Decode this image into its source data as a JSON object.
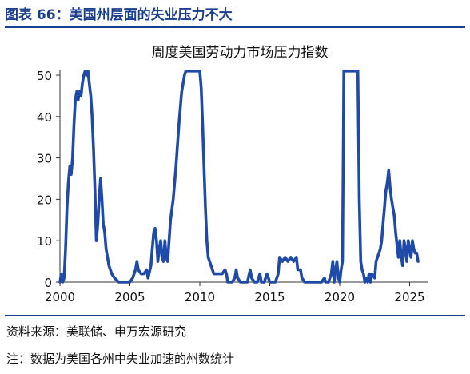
{
  "figure": {
    "title": "图表 66：美国州层面的失业压力不大",
    "source": "资料来源：美联储、申万宏源研究",
    "note": "注：数据为美国各州中失业加速的州数统计"
  },
  "colors": {
    "accent": "#1a3f8f",
    "series": "#1f4aa8",
    "text": "#111111"
  },
  "chart_data": {
    "type": "line",
    "title": "周度美国劳动力市场压力指数",
    "xlabel": "",
    "ylabel": "",
    "xlim": [
      2000,
      2026
    ],
    "ylim": [
      0,
      50
    ],
    "x_ticks": [
      2000,
      2005,
      2010,
      2015,
      2020,
      2025
    ],
    "y_ticks": [
      0,
      10,
      20,
      30,
      40,
      50
    ],
    "grid": false,
    "legend": "none",
    "series": [
      {
        "name": "",
        "points": [
          [
            2000.0,
            0
          ],
          [
            2000.1,
            2
          ],
          [
            2000.2,
            0
          ],
          [
            2000.3,
            1
          ],
          [
            2000.4,
            8
          ],
          [
            2000.5,
            18
          ],
          [
            2000.6,
            24
          ],
          [
            2000.7,
            28
          ],
          [
            2000.8,
            26
          ],
          [
            2000.9,
            30
          ],
          [
            2001.0,
            38
          ],
          [
            2001.1,
            44
          ],
          [
            2001.2,
            46
          ],
          [
            2001.3,
            44
          ],
          [
            2001.4,
            46
          ],
          [
            2001.5,
            45
          ],
          [
            2001.6,
            48
          ],
          [
            2001.7,
            50
          ],
          [
            2001.8,
            51
          ],
          [
            2001.9,
            50
          ],
          [
            2002.0,
            51
          ],
          [
            2002.1,
            48
          ],
          [
            2002.2,
            45
          ],
          [
            2002.3,
            40
          ],
          [
            2002.4,
            32
          ],
          [
            2002.5,
            22
          ],
          [
            2002.6,
            10
          ],
          [
            2002.7,
            14
          ],
          [
            2002.8,
            20
          ],
          [
            2002.9,
            25
          ],
          [
            2003.0,
            20
          ],
          [
            2003.1,
            14
          ],
          [
            2003.2,
            12
          ],
          [
            2003.3,
            8
          ],
          [
            2003.5,
            4
          ],
          [
            2003.7,
            2
          ],
          [
            2003.9,
            1
          ],
          [
            2004.2,
            0
          ],
          [
            2004.5,
            0
          ],
          [
            2004.8,
            0
          ],
          [
            2005.0,
            0
          ],
          [
            2005.2,
            1
          ],
          [
            2005.4,
            3
          ],
          [
            2005.5,
            5
          ],
          [
            2005.6,
            3
          ],
          [
            2005.8,
            2
          ],
          [
            2006.0,
            2
          ],
          [
            2006.2,
            3
          ],
          [
            2006.3,
            1
          ],
          [
            2006.5,
            4
          ],
          [
            2006.6,
            8
          ],
          [
            2006.7,
            12
          ],
          [
            2006.8,
            13
          ],
          [
            2006.9,
            10
          ],
          [
            2007.0,
            5
          ],
          [
            2007.1,
            8
          ],
          [
            2007.2,
            10
          ],
          [
            2007.3,
            6
          ],
          [
            2007.4,
            5
          ],
          [
            2007.5,
            10
          ],
          [
            2007.6,
            6
          ],
          [
            2007.7,
            5
          ],
          [
            2007.8,
            10
          ],
          [
            2007.9,
            15
          ],
          [
            2008.1,
            20
          ],
          [
            2008.3,
            28
          ],
          [
            2008.5,
            38
          ],
          [
            2008.7,
            46
          ],
          [
            2008.9,
            50
          ],
          [
            2009.0,
            51
          ],
          [
            2009.2,
            51
          ],
          [
            2009.4,
            51
          ],
          [
            2009.6,
            51
          ],
          [
            2009.8,
            51
          ],
          [
            2010.0,
            51
          ],
          [
            2010.1,
            47
          ],
          [
            2010.2,
            38
          ],
          [
            2010.3,
            28
          ],
          [
            2010.4,
            18
          ],
          [
            2010.5,
            10
          ],
          [
            2010.6,
            6
          ],
          [
            2010.8,
            4
          ],
          [
            2011.0,
            2
          ],
          [
            2011.3,
            2
          ],
          [
            2011.6,
            2
          ],
          [
            2011.8,
            3
          ],
          [
            2011.9,
            2
          ],
          [
            2012.0,
            0
          ],
          [
            2012.3,
            0
          ],
          [
            2012.5,
            1
          ],
          [
            2012.6,
            3
          ],
          [
            2012.7,
            1
          ],
          [
            2012.9,
            0
          ],
          [
            2013.2,
            0
          ],
          [
            2013.4,
            0
          ],
          [
            2013.6,
            3
          ],
          [
            2013.7,
            1
          ],
          [
            2013.9,
            0
          ],
          [
            2014.1,
            0
          ],
          [
            2014.3,
            2
          ],
          [
            2014.4,
            0
          ],
          [
            2014.6,
            0
          ],
          [
            2014.8,
            2
          ],
          [
            2015.0,
            0
          ],
          [
            2015.2,
            0
          ],
          [
            2015.4,
            0
          ],
          [
            2015.6,
            2
          ],
          [
            2015.7,
            6
          ],
          [
            2015.9,
            5
          ],
          [
            2016.1,
            6
          ],
          [
            2016.3,
            5
          ],
          [
            2016.5,
            6
          ],
          [
            2016.7,
            5
          ],
          [
            2016.9,
            6
          ],
          [
            2017.0,
            3
          ],
          [
            2017.2,
            3
          ],
          [
            2017.3,
            1
          ],
          [
            2017.5,
            0
          ],
          [
            2017.8,
            0
          ],
          [
            2018.1,
            0
          ],
          [
            2018.4,
            0
          ],
          [
            2018.7,
            0
          ],
          [
            2018.9,
            1
          ],
          [
            2019.0,
            0
          ],
          [
            2019.2,
            0
          ],
          [
            2019.4,
            2
          ],
          [
            2019.5,
            5
          ],
          [
            2019.6,
            0
          ],
          [
            2019.7,
            3
          ],
          [
            2019.8,
            5
          ],
          [
            2019.9,
            1
          ],
          [
            2020.0,
            0
          ],
          [
            2020.1,
            3
          ],
          [
            2020.2,
            5
          ],
          [
            2020.3,
            51
          ],
          [
            2020.5,
            51
          ],
          [
            2020.7,
            51
          ],
          [
            2020.9,
            51
          ],
          [
            2021.1,
            51
          ],
          [
            2021.3,
            51
          ],
          [
            2021.4,
            20
          ],
          [
            2021.5,
            5
          ],
          [
            2021.6,
            3
          ],
          [
            2021.7,
            2
          ],
          [
            2021.8,
            0
          ],
          [
            2021.9,
            1
          ],
          [
            2022.0,
            0
          ],
          [
            2022.1,
            2
          ],
          [
            2022.2,
            0
          ],
          [
            2022.3,
            2
          ],
          [
            2022.5,
            1
          ],
          [
            2022.6,
            5
          ],
          [
            2022.7,
            6
          ],
          [
            2022.9,
            8
          ],
          [
            2023.0,
            10
          ],
          [
            2023.1,
            14
          ],
          [
            2023.2,
            18
          ],
          [
            2023.3,
            22
          ],
          [
            2023.4,
            24
          ],
          [
            2023.5,
            27
          ],
          [
            2023.6,
            23
          ],
          [
            2023.7,
            20
          ],
          [
            2023.8,
            18
          ],
          [
            2023.9,
            16
          ],
          [
            2024.0,
            12
          ],
          [
            2024.1,
            9
          ],
          [
            2024.2,
            6
          ],
          [
            2024.3,
            10
          ],
          [
            2024.4,
            6
          ],
          [
            2024.5,
            4
          ],
          [
            2024.6,
            10
          ],
          [
            2024.7,
            8
          ],
          [
            2024.8,
            5
          ],
          [
            2024.9,
            10
          ],
          [
            2025.0,
            8
          ],
          [
            2025.1,
            6
          ],
          [
            2025.2,
            10
          ],
          [
            2025.3,
            8
          ],
          [
            2025.4,
            7
          ],
          [
            2025.5,
            7
          ],
          [
            2025.6,
            5
          ]
        ]
      }
    ]
  }
}
